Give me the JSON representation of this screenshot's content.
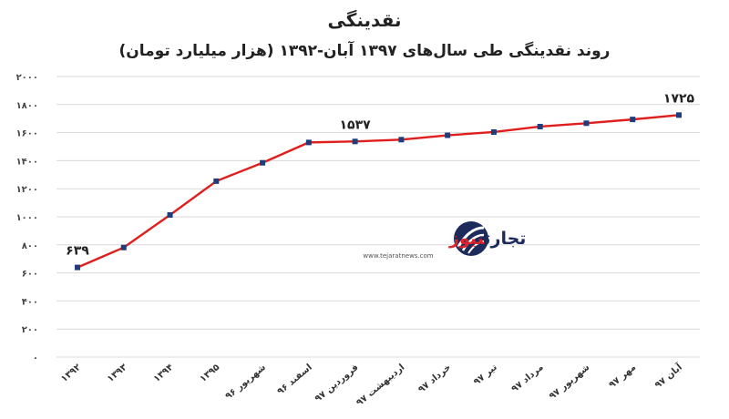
{
  "title": "نقدینگی",
  "subtitle": "روند نقدینگی طی سال‌های ۱۳۹۷ آبان-۱۳۹۲ (هزار میلیارد تومان)",
  "watermark": {
    "brand_part1": "تجارت",
    "brand_part2": "نیوز",
    "url": "www.tejaratnews.com",
    "logo": "tejaratnews-logo-icon"
  },
  "colors": {
    "line": "#e01e1e",
    "marker": "#1f3d7a",
    "grid": "#d9d9d9",
    "brand_dark": "#1c2a5c",
    "brand_red": "#d6252c"
  },
  "chart_data": {
    "type": "line",
    "categories": [
      "۱۳۹۲",
      "۱۳۹۳",
      "۱۳۹۴",
      "۱۳۹۵",
      "شهریور ۹۶",
      "اسفند ۹۶",
      "فروردین ۹۷",
      "اردیبهشت ۹۷",
      "خرداد ۹۷",
      "تیر ۹۷",
      "مرداد ۹۷",
      "شهریور ۹۷",
      "مهر ۹۷",
      "آبان ۹۷"
    ],
    "series": [
      {
        "values": [
          639,
          781,
          1013,
          1254,
          1385,
          1530,
          1537,
          1550,
          1581,
          1604,
          1643,
          1667,
          1694,
          1725
        ]
      }
    ],
    "data_labels": [
      {
        "index": 0,
        "text": "۶۳۹"
      },
      {
        "index": 6,
        "text": "۱۵۳۷"
      },
      {
        "index": 13,
        "text": "۱۷۲۵"
      }
    ],
    "yticks": [
      0,
      200,
      400,
      600,
      800,
      1000,
      1200,
      1400,
      1600,
      1800,
      2000
    ],
    "ytick_labels": [
      "۰",
      "۲۰۰",
      "۴۰۰",
      "۶۰۰",
      "۸۰۰",
      "۱۰۰۰",
      "۱۲۰۰",
      "۱۴۰۰",
      "۱۶۰۰",
      "۱۸۰۰",
      "۲۰۰۰"
    ],
    "ylim": [
      0,
      2000
    ],
    "grid": true,
    "legend": "none"
  }
}
